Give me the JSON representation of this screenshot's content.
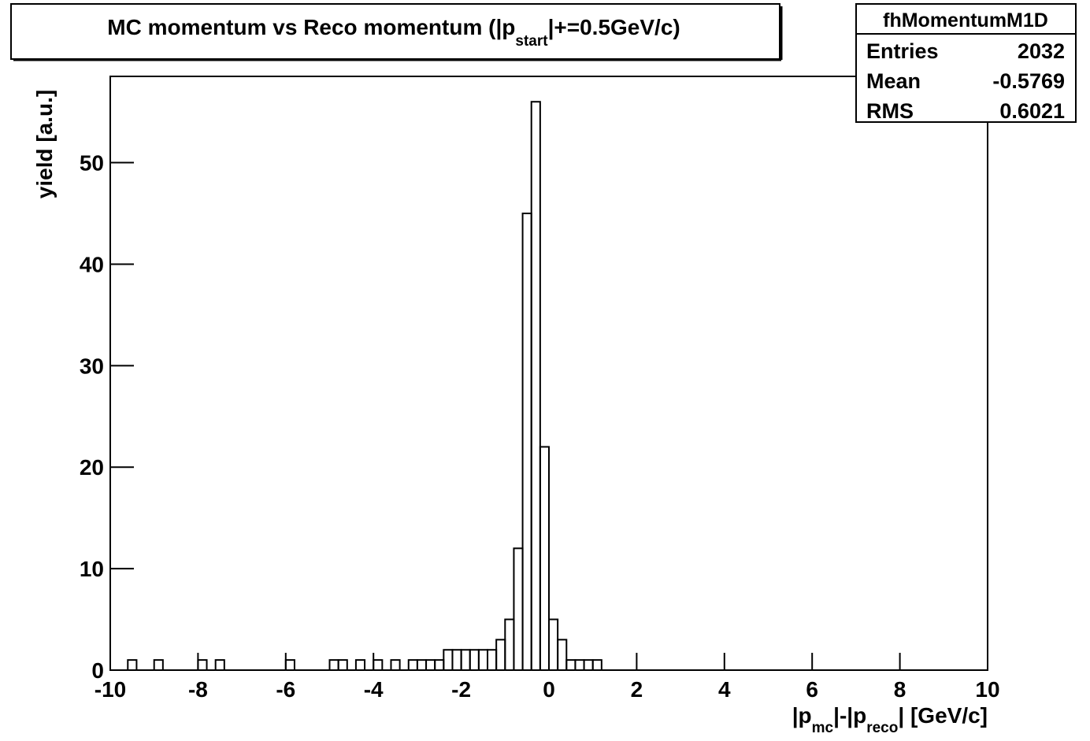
{
  "chart_data": {
    "type": "histogram",
    "title_parts": [
      "MC momentum vs Reco momentum (|p",
      "start",
      "|+=0.5GeV/c)"
    ],
    "xlabel_parts": [
      "|p",
      "mc",
      "|-|p",
      "reco",
      "| [GeV/c]"
    ],
    "ylabel": "yield [a.u.]",
    "stats": {
      "name": "fhMomentumM1D",
      "rows": [
        [
          "Entries",
          2032
        ],
        [
          "Mean",
          -0.5769
        ],
        [
          "RMS",
          0.6021
        ]
      ]
    },
    "color": "#000000",
    "bins": [
      -10,
      -9.8,
      -9.6,
      -9.4,
      -9.2,
      -9,
      -8.8,
      -8.6,
      -8.4,
      -8.2,
      -8,
      -7.8,
      -7.6,
      -7.4,
      -7.2,
      -7,
      -6.8,
      -6.6,
      -6.4,
      -6.2,
      -6,
      -5.8,
      -5.6,
      -5.4,
      -5.2,
      -5,
      -4.8,
      -4.6,
      -4.4,
      -4.2,
      -4,
      -3.8,
      -3.6,
      -3.4,
      -3.2,
      -3,
      -2.8,
      -2.6,
      -2.4,
      -2.2,
      -2,
      -1.8,
      -1.6,
      -1.4,
      -1.2,
      -1,
      -0.8,
      -0.6,
      -0.4,
      -0.2,
      0,
      0.2,
      0.4,
      0.6,
      0.8,
      1,
      1.2,
      1.4,
      1.6,
      1.8,
      2,
      2.2,
      2.4,
      2.6,
      2.8,
      3,
      3.2,
      3.4,
      3.6,
      3.8,
      4,
      4.2,
      4.4,
      4.6,
      4.8,
      5,
      5.2,
      5.4,
      5.6,
      5.8,
      6,
      6.2,
      6.4,
      6.6,
      6.8,
      7,
      7.2,
      7.4,
      7.6,
      7.8,
      8,
      8.2,
      8.4,
      8.6,
      8.8,
      9,
      9.2,
      9.4,
      9.6,
      9.8,
      10
    ],
    "values": [
      0,
      0,
      1,
      0,
      0,
      1,
      0,
      0,
      0,
      0,
      1,
      0,
      1,
      0,
      0,
      0,
      0,
      0,
      0,
      0,
      1,
      0,
      0,
      0,
      0,
      1,
      1,
      0,
      1,
      0,
      1,
      0,
      1,
      0,
      1,
      1,
      1,
      1,
      2,
      2,
      2,
      2,
      2,
      2,
      3,
      5,
      12,
      45,
      56,
      22,
      5,
      3,
      1,
      1,
      1,
      1,
      0,
      0,
      0,
      0,
      0,
      0,
      0,
      0,
      0,
      0,
      0,
      0,
      0,
      0,
      0,
      0,
      0,
      0,
      0,
      0,
      0,
      0,
      0,
      0,
      0,
      0,
      0,
      0,
      0,
      0,
      0,
      0,
      0,
      0,
      0,
      0,
      0,
      0,
      0,
      0,
      0,
      0,
      0,
      0
    ],
    "xlim": [
      -10,
      10
    ],
    "xticks": [
      -10,
      -8,
      -6,
      -4,
      -2,
      0,
      2,
      4,
      6,
      8,
      10
    ],
    "ylim": [
      0,
      58.5
    ],
    "yticks": [
      0,
      10,
      20,
      30,
      40,
      50
    ]
  }
}
